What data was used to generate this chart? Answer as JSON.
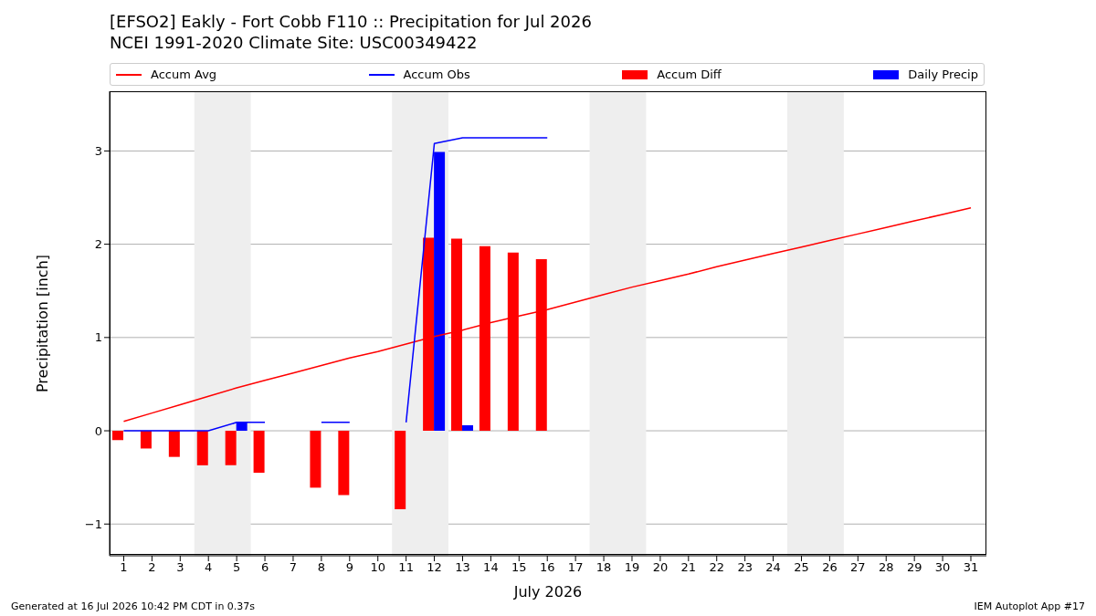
{
  "chart_data": {
    "type": "bar",
    "title": "[EFSO2] Eakly - Fort Cobb F110 :: Precipitation for Jul 2026",
    "subtitle": "NCEI 1991-2020 Climate Site: USC00349422",
    "xlabel": "July 2026",
    "ylabel": "Precipitation [inch]",
    "x": [
      1,
      2,
      3,
      4,
      5,
      6,
      7,
      8,
      9,
      10,
      11,
      12,
      13,
      14,
      15,
      16,
      17,
      18,
      19,
      20,
      21,
      22,
      23,
      24,
      25,
      26,
      27,
      28,
      29,
      30,
      31
    ],
    "series": [
      {
        "name": "Accum Avg",
        "type": "line",
        "color": "#ff0000",
        "values": [
          0.1,
          0.19,
          0.28,
          0.37,
          0.46,
          0.54,
          0.62,
          0.7,
          0.78,
          0.85,
          0.93,
          1.01,
          1.08,
          1.16,
          1.23,
          1.3,
          1.38,
          1.46,
          1.54,
          1.61,
          1.68,
          1.76,
          1.83,
          1.9,
          1.97,
          2.04,
          2.11,
          2.18,
          2.25,
          2.32,
          2.39
        ]
      },
      {
        "name": "Accum Obs",
        "type": "line",
        "color": "#0000ff",
        "values": [
          0,
          0,
          0,
          0,
          0.09,
          0.09,
          null,
          0.09,
          0.09,
          null,
          0.09,
          3.08,
          3.14,
          3.14,
          3.14,
          3.14,
          null,
          null,
          null,
          null,
          null,
          null,
          null,
          null,
          null,
          null,
          null,
          null,
          null,
          null,
          null
        ]
      },
      {
        "name": "Accum Diff",
        "color": "#ff0000",
        "values": [
          -0.1,
          -0.19,
          -0.28,
          -0.37,
          -0.37,
          -0.45,
          null,
          -0.61,
          -0.69,
          null,
          -0.84,
          2.07,
          2.06,
          1.98,
          1.91,
          1.84,
          null,
          null,
          null,
          null,
          null,
          null,
          null,
          null,
          null,
          null,
          null,
          null,
          null,
          null,
          null
        ]
      },
      {
        "name": "Daily Precip",
        "color": "#0000ff",
        "values": [
          0,
          0,
          0,
          0,
          0.09,
          0,
          null,
          0,
          0,
          null,
          0,
          2.99,
          0.06,
          0,
          0,
          0,
          null,
          null,
          null,
          null,
          null,
          null,
          null,
          null,
          null,
          null,
          null,
          null,
          null,
          null,
          null
        ]
      }
    ],
    "xlim": [
      0.5,
      31.55
    ],
    "xticks": [
      1,
      2,
      3,
      4,
      5,
      6,
      7,
      8,
      9,
      10,
      11,
      12,
      13,
      14,
      15,
      16,
      17,
      18,
      19,
      20,
      21,
      22,
      23,
      24,
      25,
      26,
      27,
      28,
      29,
      30,
      31
    ],
    "ylim": [
      -1.34,
      3.64
    ],
    "yticks": [
      {
        "value": -1,
        "label": "−1"
      },
      0,
      1,
      2,
      3
    ],
    "grid": "y",
    "legend": "top",
    "bands": [
      {
        "axis": "x",
        "from": 3.5,
        "to": 5.5,
        "color": "#eeeeee"
      },
      {
        "axis": "x",
        "from": 10.5,
        "to": 12.5,
        "color": "#eeeeee"
      },
      {
        "axis": "x",
        "from": 17.5,
        "to": 19.5,
        "color": "#eeeeee"
      },
      {
        "axis": "x",
        "from": 24.5,
        "to": 26.5,
        "color": "#eeeeee"
      }
    ],
    "annotations": [
      "Generated at 16 Jul 2026 10:42 PM CDT in 0.37s",
      "IEM Autoplot App #17"
    ]
  }
}
